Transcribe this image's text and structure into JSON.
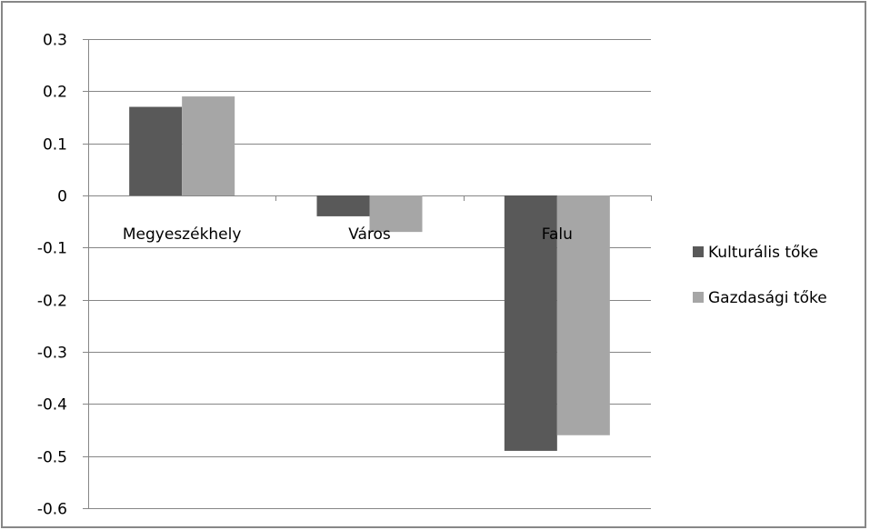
{
  "chart_data": {
    "type": "bar",
    "categories": [
      "Megyeszékhely",
      "Város",
      "Falu"
    ],
    "series": [
      {
        "name": "Kulturális tőke",
        "values": [
          0.17,
          -0.04,
          -0.49
        ],
        "color": "#595959"
      },
      {
        "name": "Gazdasági tőke",
        "values": [
          0.19,
          -0.07,
          -0.46
        ],
        "color": "#a6a6a6"
      }
    ],
    "ylim": [
      -0.6,
      0.3
    ],
    "yticks": [
      "0.3",
      "0.2",
      "0.1",
      "0",
      "-0.1",
      "-0.2",
      "-0.3",
      "-0.4",
      "-0.5",
      "-0.6"
    ],
    "ytick_values": [
      0.3,
      0.2,
      0.1,
      0,
      -0.1,
      -0.2,
      -0.3,
      -0.4,
      -0.5,
      -0.6
    ],
    "grid": true,
    "legend_position": "right",
    "gridline_color": "#868686",
    "frame_color": "#878787",
    "title": "",
    "xlabel": "",
    "ylabel": ""
  }
}
